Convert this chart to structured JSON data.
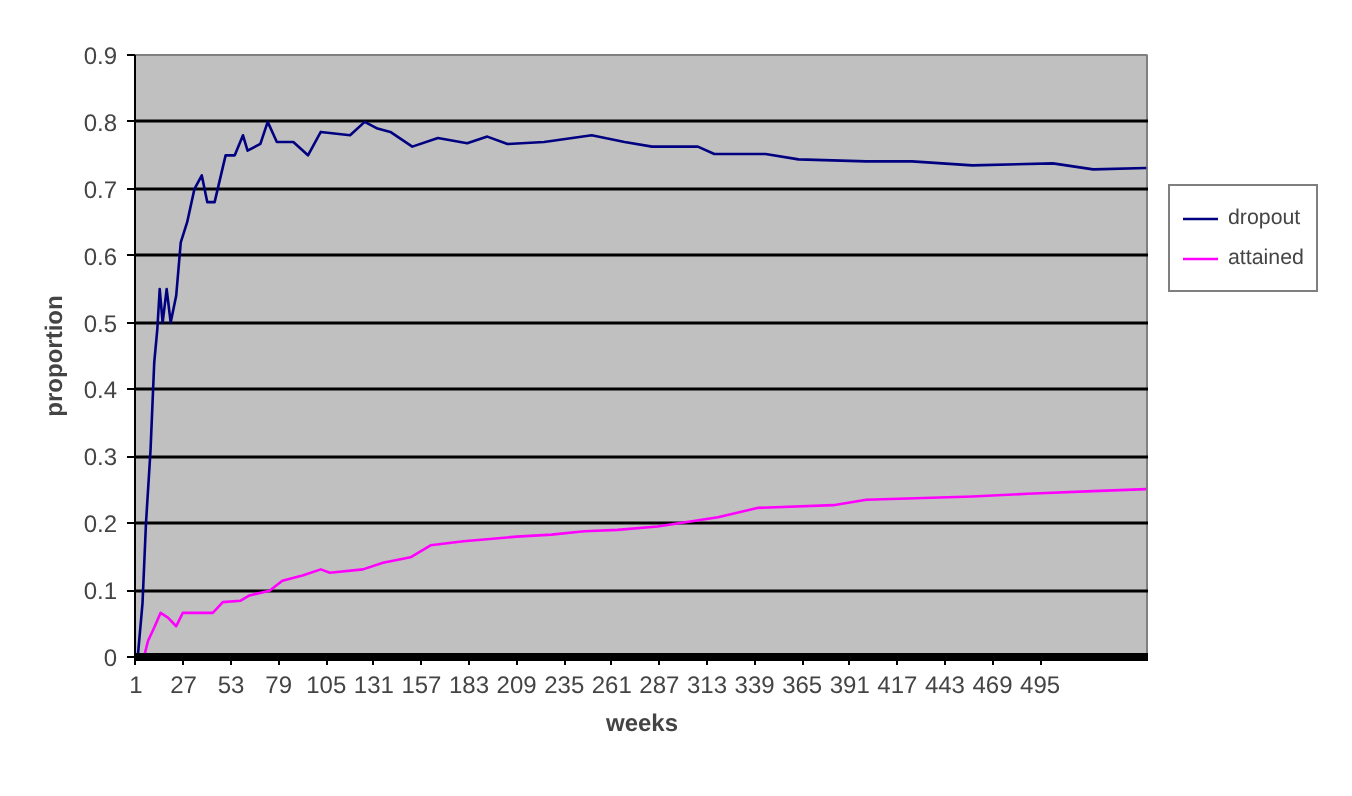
{
  "chart_data": {
    "type": "line",
    "xlabel": "weeks",
    "ylabel": "proportion",
    "xlim": [
      0.5,
      554.5
    ],
    "xticks": [
      1,
      27,
      53,
      79,
      105,
      131,
      157,
      183,
      209,
      235,
      261,
      287,
      313,
      339,
      365,
      391,
      417,
      443,
      469,
      495
    ],
    "ylim": [
      0,
      0.9
    ],
    "yticks": [
      0,
      0.1,
      0.2,
      0.3,
      0.4,
      0.5,
      0.6,
      0.7,
      0.8,
      0.9
    ],
    "grid": "y",
    "legend": "right",
    "marker": "none",
    "line_style": "solid",
    "series": [
      {
        "name": "dropout",
        "color": "#000080",
        "x": [
          2,
          4.6,
          6.5,
          9,
          11,
          12.7,
          14,
          15.6,
          17.8,
          20,
          23,
          25.5,
          29,
          33,
          37,
          40,
          44,
          50,
          55,
          59.5,
          62,
          69,
          73,
          78,
          87,
          95,
          102,
          118,
          126,
          133,
          140,
          152,
          166,
          182,
          193,
          204,
          224,
          250,
          268,
          283,
          308,
          317,
          345,
          363,
          400,
          425,
          458,
          502,
          524,
          553
        ],
        "values": [
          0,
          0.08,
          0.2,
          0.31,
          0.44,
          0.49,
          0.55,
          0.5,
          0.55,
          0.5,
          0.54,
          0.62,
          0.65,
          0.7,
          0.72,
          0.68,
          0.68,
          0.75,
          0.75,
          0.78,
          0.757,
          0.767,
          0.8,
          0.77,
          0.77,
          0.75,
          0.785,
          0.78,
          0.8,
          0.79,
          0.785,
          0.763,
          0.776,
          0.768,
          0.778,
          0.767,
          0.77,
          0.78,
          0.77,
          0.763,
          0.763,
          0.752,
          0.752,
          0.744,
          0.741,
          0.741,
          0.735,
          0.738,
          0.729,
          0.731
        ]
      },
      {
        "name": "attained",
        "color": "#ff00ff",
        "x": [
          5.4,
          7.6,
          11,
          14.5,
          18.5,
          23,
          26.6,
          34,
          43,
          48.5,
          58,
          63,
          74,
          81,
          92,
          102,
          107,
          125,
          136,
          151,
          162,
          180,
          209,
          228,
          246,
          264,
          286,
          319,
          341,
          382,
          400,
          458,
          488,
          524,
          553
        ],
        "values": [
          0,
          0.024,
          0.044,
          0.066,
          0.059,
          0.046,
          0.066,
          0.066,
          0.066,
          0.082,
          0.084,
          0.092,
          0.099,
          0.114,
          0.122,
          0.131,
          0.126,
          0.131,
          0.141,
          0.149,
          0.167,
          0.173,
          0.18,
          0.183,
          0.188,
          0.19,
          0.195,
          0.209,
          0.223,
          0.227,
          0.235,
          0.24,
          0.244,
          0.248,
          0.251
        ]
      }
    ]
  }
}
